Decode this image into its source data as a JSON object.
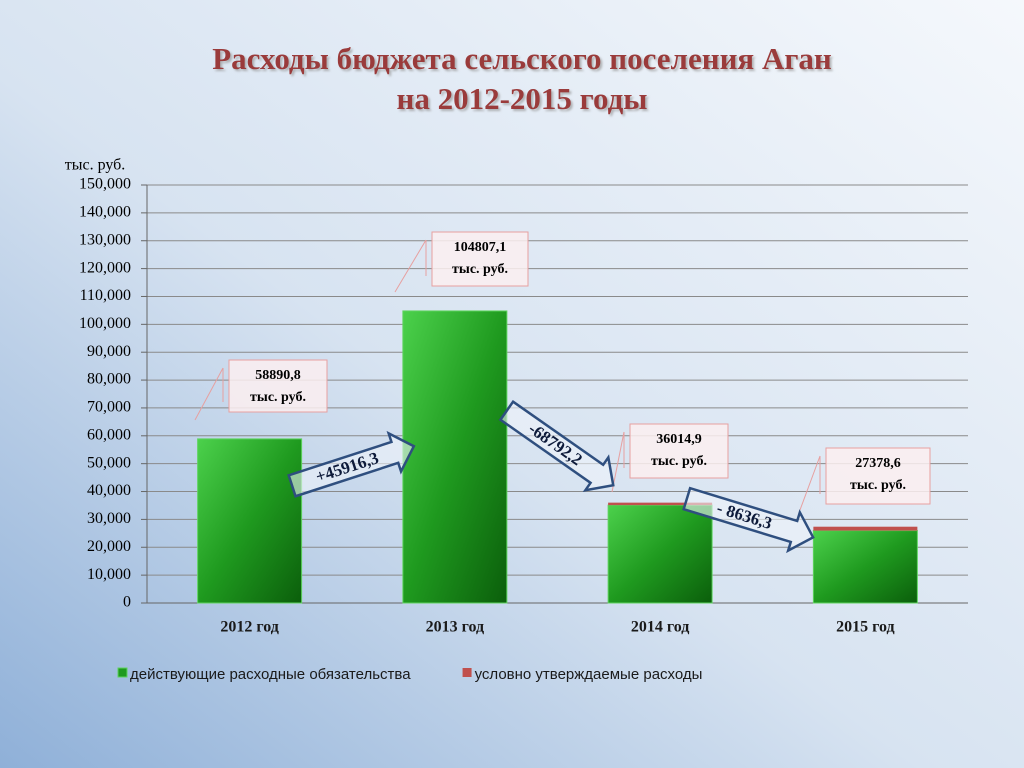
{
  "chart_data": {
    "type": "stacked_bar",
    "title": "Расходы бюджета сельского поселения Аган",
    "subtitle": "на 2012-2015 годы",
    "y_label": "тыс. руб.",
    "categories": [
      "2012 год",
      "2013 год",
      "2014 год",
      "2015 год"
    ],
    "series": [
      {
        "name": "действующие расходные обязательства",
        "color": "#1f9a1f",
        "values": [
          58890.8,
          104807.1,
          35114.9,
          25978.6
        ]
      },
      {
        "name": "условно утверждаемые расходы",
        "color": "#c0504d",
        "values": [
          0,
          0,
          900,
          1400
        ]
      }
    ],
    "ylim": [
      0,
      150000
    ],
    "yticks": [
      0,
      {
        "value": 10000,
        "label": "10,000"
      },
      {
        "value": 20000,
        "label": "20,000"
      },
      {
        "value": 30000,
        "label": "30,000"
      },
      {
        "value": 40000,
        "label": "40,000"
      },
      {
        "value": 50000,
        "label": "50,000"
      },
      {
        "value": 60000,
        "label": "60,000"
      },
      {
        "value": 70000,
        "label": "70,000"
      },
      {
        "value": 80000,
        "label": "80,000"
      },
      {
        "value": 90000,
        "label": "90,000"
      },
      {
        "value": 100000,
        "label": "100,000"
      },
      {
        "value": 110000,
        "label": "110,000"
      },
      {
        "value": 120000,
        "label": "120,000"
      },
      {
        "value": 130000,
        "label": "130,000"
      },
      {
        "value": 140000,
        "label": "140,000"
      },
      {
        "value": 150000,
        "label": "150,000"
      }
    ],
    "grid": true,
    "legend": "bottom",
    "annotations": [
      {
        "lines": [
          "58890,8",
          "тыс. руб."
        ]
      },
      {
        "lines": [
          "104807,1",
          "тыс. руб."
        ]
      },
      {
        "lines": [
          "36014,9",
          "тыс. руб."
        ]
      },
      {
        "lines": [
          "27378,6",
          "тыс. руб."
        ]
      }
    ],
    "changes": [
      "+45916,3",
      "-68792,2",
      "- 8636,3"
    ]
  }
}
